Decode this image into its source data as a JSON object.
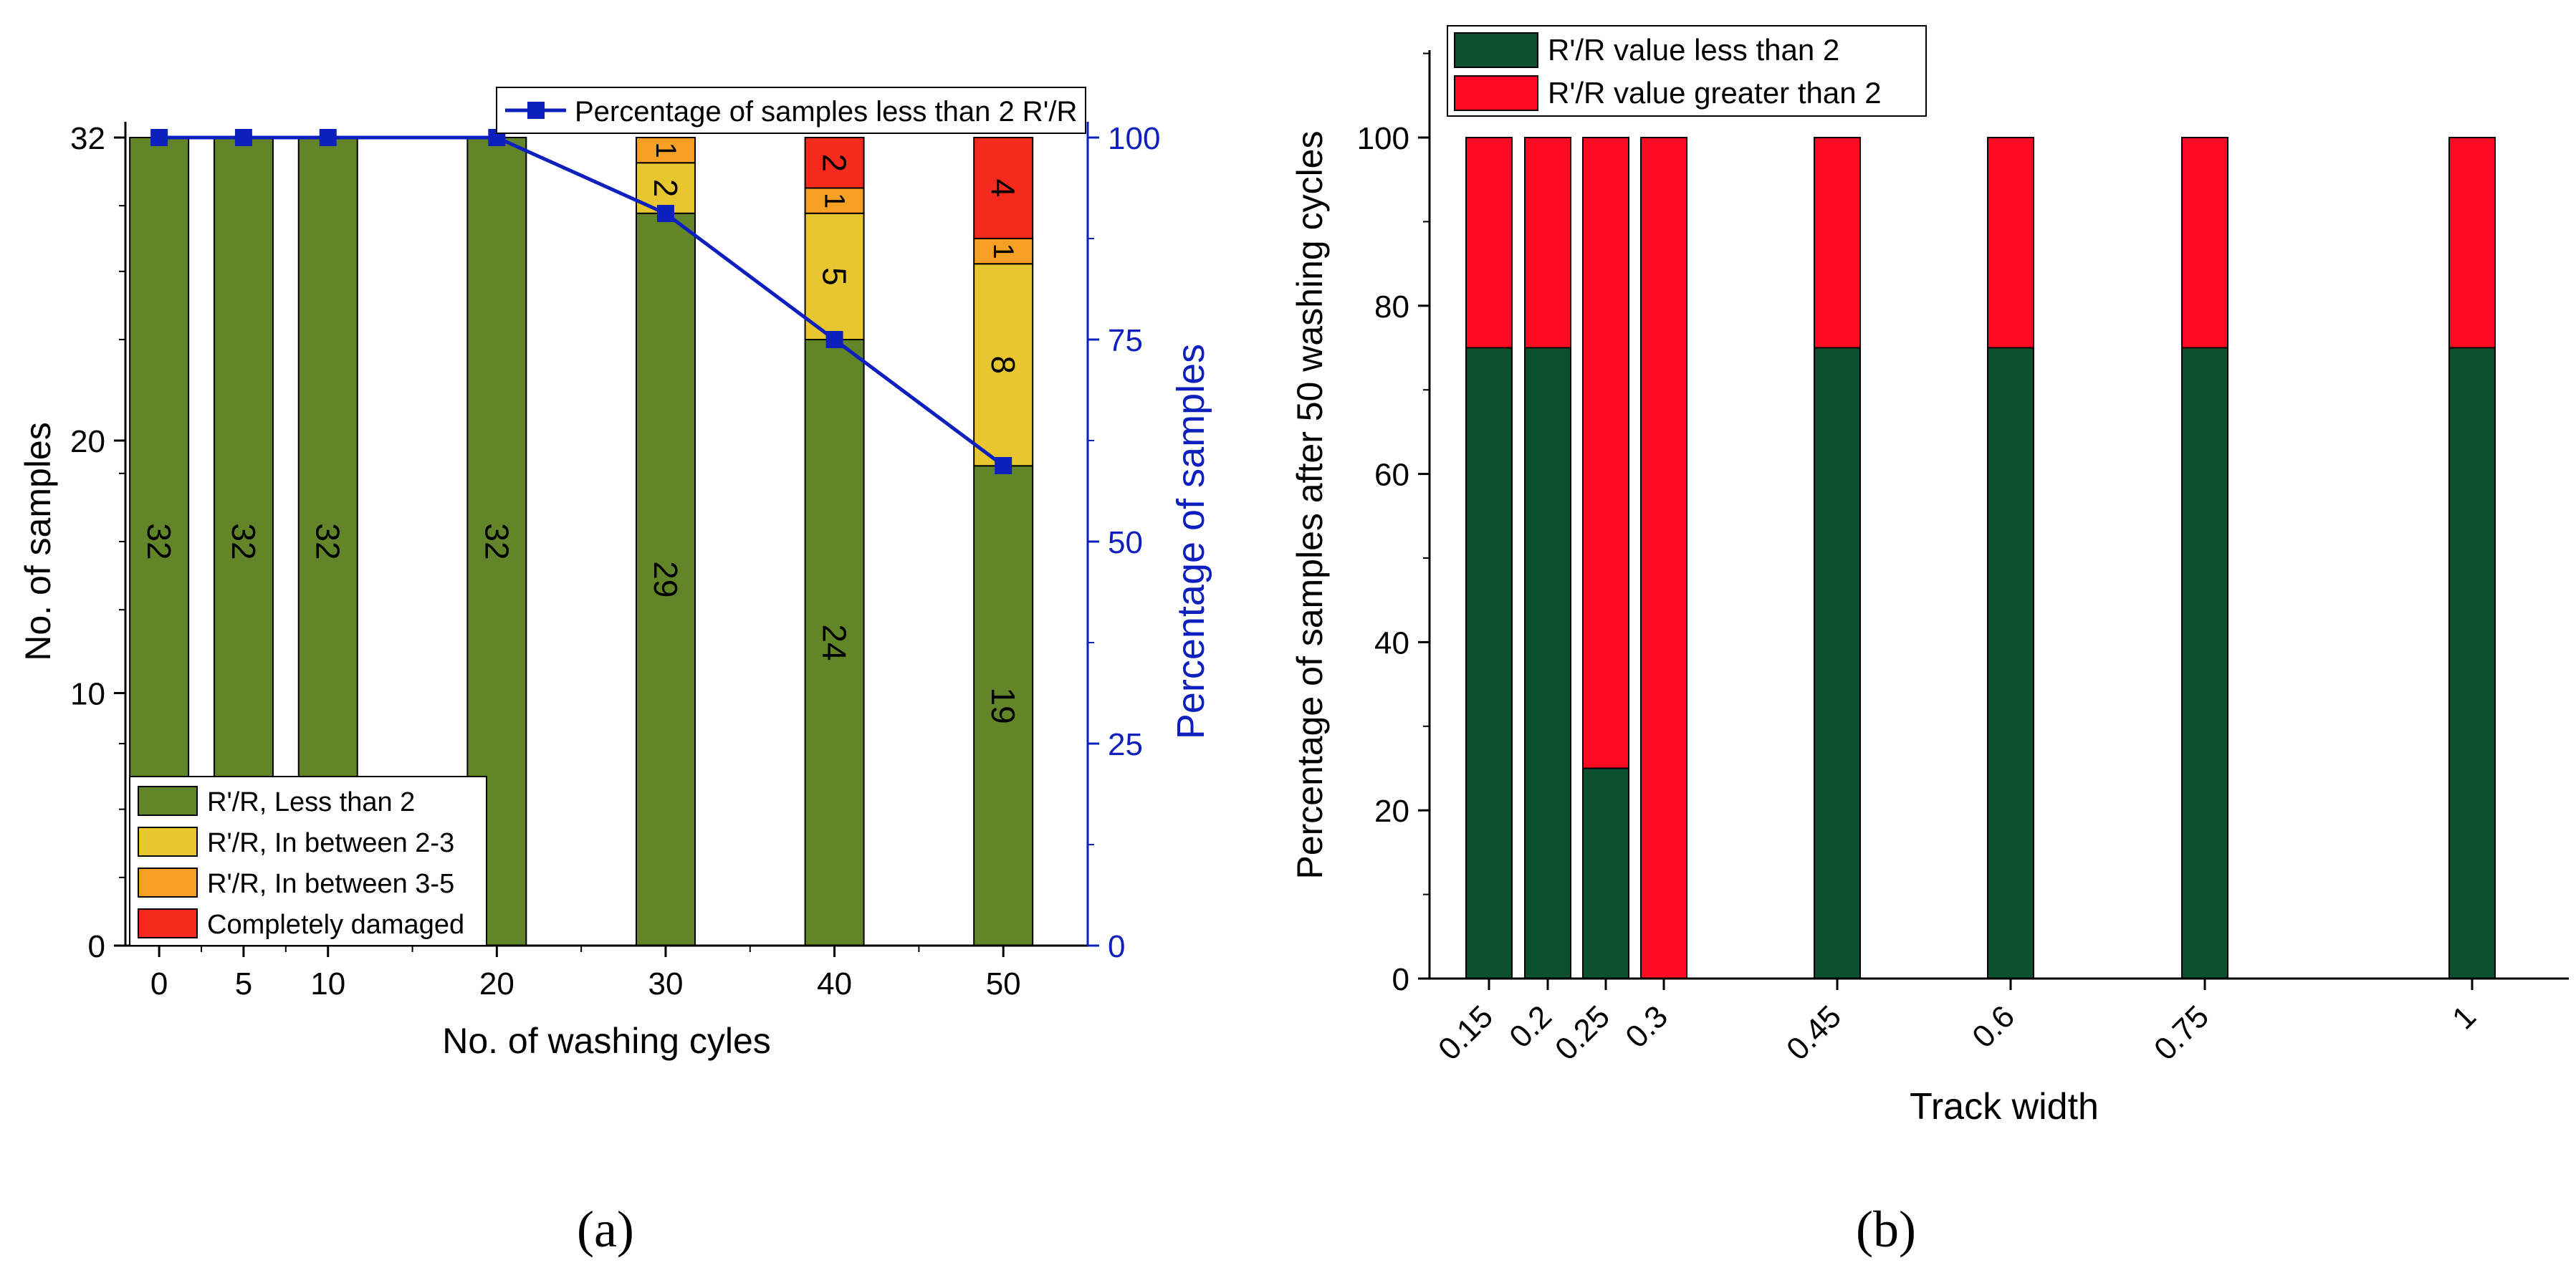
{
  "colors": {
    "olive": "#63852a",
    "yellow": "#e8c630",
    "orange": "#f5a025",
    "red_a": "#f5291d",
    "blue": "#0d1fbd",
    "dark_green": "#0d5030",
    "red_b": "#ff0a22"
  },
  "captions": {
    "a": "(a)",
    "b": "(b)"
  },
  "chart_data": [
    {
      "id": "a",
      "type": "bar",
      "stacked": true,
      "xlabel": "No. of washing cyles",
      "ylabel": "No. of samples",
      "y2label": "Percentage of samples",
      "x": [
        0,
        5,
        10,
        20,
        30,
        40,
        50
      ],
      "x_ticks": [
        "0",
        "5",
        "10",
        "20",
        "30",
        "40",
        "50"
      ],
      "y_ticks": [
        "0",
        "10",
        "20",
        "32"
      ],
      "y2_ticks": [
        "0",
        "25",
        "50",
        "75",
        "100"
      ],
      "ylim": [
        0,
        32
      ],
      "y2lim": [
        0,
        100
      ],
      "xlim": [
        -2,
        55
      ],
      "series": [
        {
          "name": "R'/R, Less than 2",
          "values": [
            32,
            32,
            32,
            32,
            29,
            24,
            19
          ],
          "labels": [
            "32",
            "32",
            "32",
            "32",
            "29",
            "24",
            "19"
          ]
        },
        {
          "name": "R'/R, In between 2-3",
          "values": [
            0,
            0,
            0,
            0,
            2,
            5,
            8
          ],
          "labels": [
            "",
            "",
            "",
            "",
            "2",
            "5",
            "8"
          ]
        },
        {
          "name": "R'/R, In between 3-5",
          "values": [
            0,
            0,
            0,
            0,
            1,
            1,
            1
          ],
          "labels": [
            "",
            "",
            "",
            "",
            "1",
            "1",
            "1"
          ]
        },
        {
          "name": "Completely damaged",
          "values": [
            0,
            0,
            0,
            0,
            0,
            2,
            4
          ],
          "labels": [
            "",
            "",
            "",
            "",
            "",
            "2",
            "4"
          ]
        }
      ],
      "line": {
        "name": "Percentage of samples less than 2 R'/R",
        "values": [
          100,
          100,
          100,
          100,
          90.6,
          75,
          59.4
        ]
      }
    },
    {
      "id": "b",
      "type": "bar",
      "stacked": true,
      "xlabel": "Track width",
      "ylabel": "Percentage of samples after 50 washing cycles",
      "categories": [
        "0.15",
        "0.2",
        "0.25",
        "0.3",
        "0.45",
        "0.6",
        "0.75",
        "1"
      ],
      "y_ticks": [
        "0",
        "20",
        "40",
        "60",
        "80",
        "100"
      ],
      "ylim": [
        0,
        110
      ],
      "series": [
        {
          "name": "R'/R value less than 2",
          "values": [
            75,
            75,
            25,
            0,
            75,
            75,
            75,
            75
          ]
        },
        {
          "name": "R'/R value greater than 2",
          "values": [
            25,
            25,
            75,
            100,
            25,
            25,
            25,
            25
          ]
        }
      ]
    }
  ]
}
